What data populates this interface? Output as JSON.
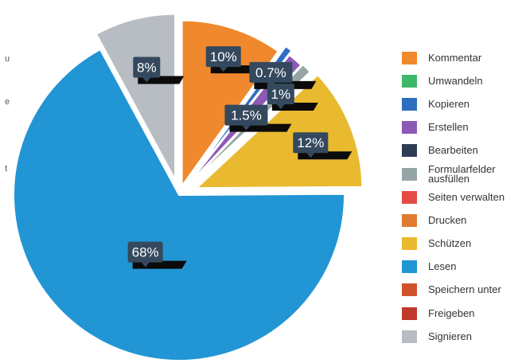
{
  "side_texts": [
    "u",
    "e",
    "t"
  ],
  "chart_data": {
    "type": "pie",
    "title": "",
    "legend_position": "right",
    "slices": [
      {
        "name": "Kommentar",
        "value": 10,
        "label": "10%",
        "color": "#F0892D"
      },
      {
        "name": "Umwandeln",
        "value": 0,
        "label": "",
        "color": "#3DB86A"
      },
      {
        "name": "Kopieren",
        "value": 0.7,
        "label": "0.7%",
        "color": "#2E6EC1"
      },
      {
        "name": "Erstellen",
        "value": 1.5,
        "label": "1.5%",
        "color": "#8E59B5"
      },
      {
        "name": "Bearbeiten",
        "value": 0,
        "label": "",
        "color": "#2E3D55"
      },
      {
        "name": "Formularfelder ausfüllen",
        "value": 1,
        "label": "1%",
        "color": "#95A5A6"
      },
      {
        "name": "Seiten verwalten",
        "value": 0,
        "label": "",
        "color": "#E54B45"
      },
      {
        "name": "Drucken",
        "value": 0,
        "label": "",
        "color": "#E07B30"
      },
      {
        "name": "Schützen",
        "value": 12,
        "label": "12%",
        "color": "#E9B930"
      },
      {
        "name": "Lesen",
        "value": 68,
        "label": "68%",
        "color": "#2295D5"
      },
      {
        "name": "Speichern unter",
        "value": 0,
        "label": "",
        "color": "#D0542B"
      },
      {
        "name": "Freigeben",
        "value": 0,
        "label": "",
        "color": "#C0392B"
      },
      {
        "name": "Signieren",
        "value": 8,
        "label": "8%",
        "color": "#B7BDC3"
      }
    ]
  }
}
